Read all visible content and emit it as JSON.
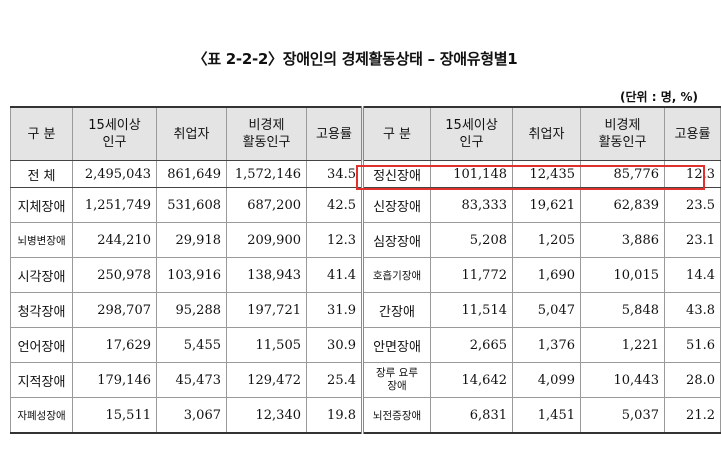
{
  "title": "〈표 2-2-2〉장애인의 경제활동상태 – 장애유형별1",
  "unit": "(단위 : 명, %)",
  "headers": [
    "구 분",
    "15세이상\n인구",
    "취업자",
    "비경제\n활동인구",
    "고용률",
    "구 분",
    "15세이상\n인구",
    "취업자",
    "비경제\n활동인구",
    "고용률"
  ],
  "rows": [
    {
      "l_cat": "전 체",
      "l_pop": "2,495,043",
      "l_emp": "861,649",
      "l_non": "1,572,146",
      "l_rate": "34.5",
      "r_cat": "정신장애",
      "r_pop": "101,148",
      "r_emp": "12,435",
      "r_non": "85,776",
      "r_rate": "12.3"
    },
    {
      "l_cat": "지체장애",
      "l_pop": "1,251,749",
      "l_emp": "531,608",
      "l_non": "687,200",
      "l_rate": "42.5",
      "r_cat": "신장장애",
      "r_pop": "83,333",
      "r_emp": "19,621",
      "r_non": "62,839",
      "r_rate": "23.5"
    },
    {
      "l_cat": "뇌병변장애",
      "l_pop": "244,210",
      "l_emp": "29,918",
      "l_non": "209,900",
      "l_rate": "12.3",
      "r_cat": "심장장애",
      "r_pop": "5,208",
      "r_emp": "1,205",
      "r_non": "3,886",
      "r_rate": "23.1"
    },
    {
      "l_cat": "시각장애",
      "l_pop": "250,978",
      "l_emp": "103,916",
      "l_non": "138,943",
      "l_rate": "41.4",
      "r_cat": "호흡기장애",
      "r_pop": "11,772",
      "r_emp": "1,690",
      "r_non": "10,015",
      "r_rate": "14.4"
    },
    {
      "l_cat": "청각장애",
      "l_pop": "298,707",
      "l_emp": "95,288",
      "l_non": "197,721",
      "l_rate": "31.9",
      "r_cat": "간장애",
      "r_pop": "11,514",
      "r_emp": "5,047",
      "r_non": "5,848",
      "r_rate": "43.8"
    },
    {
      "l_cat": "언어장애",
      "l_pop": "17,629",
      "l_emp": "5,455",
      "l_non": "11,505",
      "l_rate": "30.9",
      "r_cat": "안면장애",
      "r_pop": "2,665",
      "r_emp": "1,376",
      "r_non": "1,221",
      "r_rate": "51.6"
    },
    {
      "l_cat": "지적장애",
      "l_pop": "179,146",
      "l_emp": "45,473",
      "l_non": "129,472",
      "l_rate": "25.4",
      "r_cat": "장루 요루\n장애",
      "r_pop": "14,642",
      "r_emp": "4,099",
      "r_non": "10,443",
      "r_rate": "28.0"
    },
    {
      "l_cat": "자폐성장애",
      "l_pop": "15,511",
      "l_emp": "3,067",
      "l_non": "12,340",
      "l_rate": "19.8",
      "r_cat": "뇌전증장애",
      "r_pop": "6,831",
      "r_emp": "1,451",
      "r_non": "5,037",
      "r_rate": "21.2"
    }
  ]
}
